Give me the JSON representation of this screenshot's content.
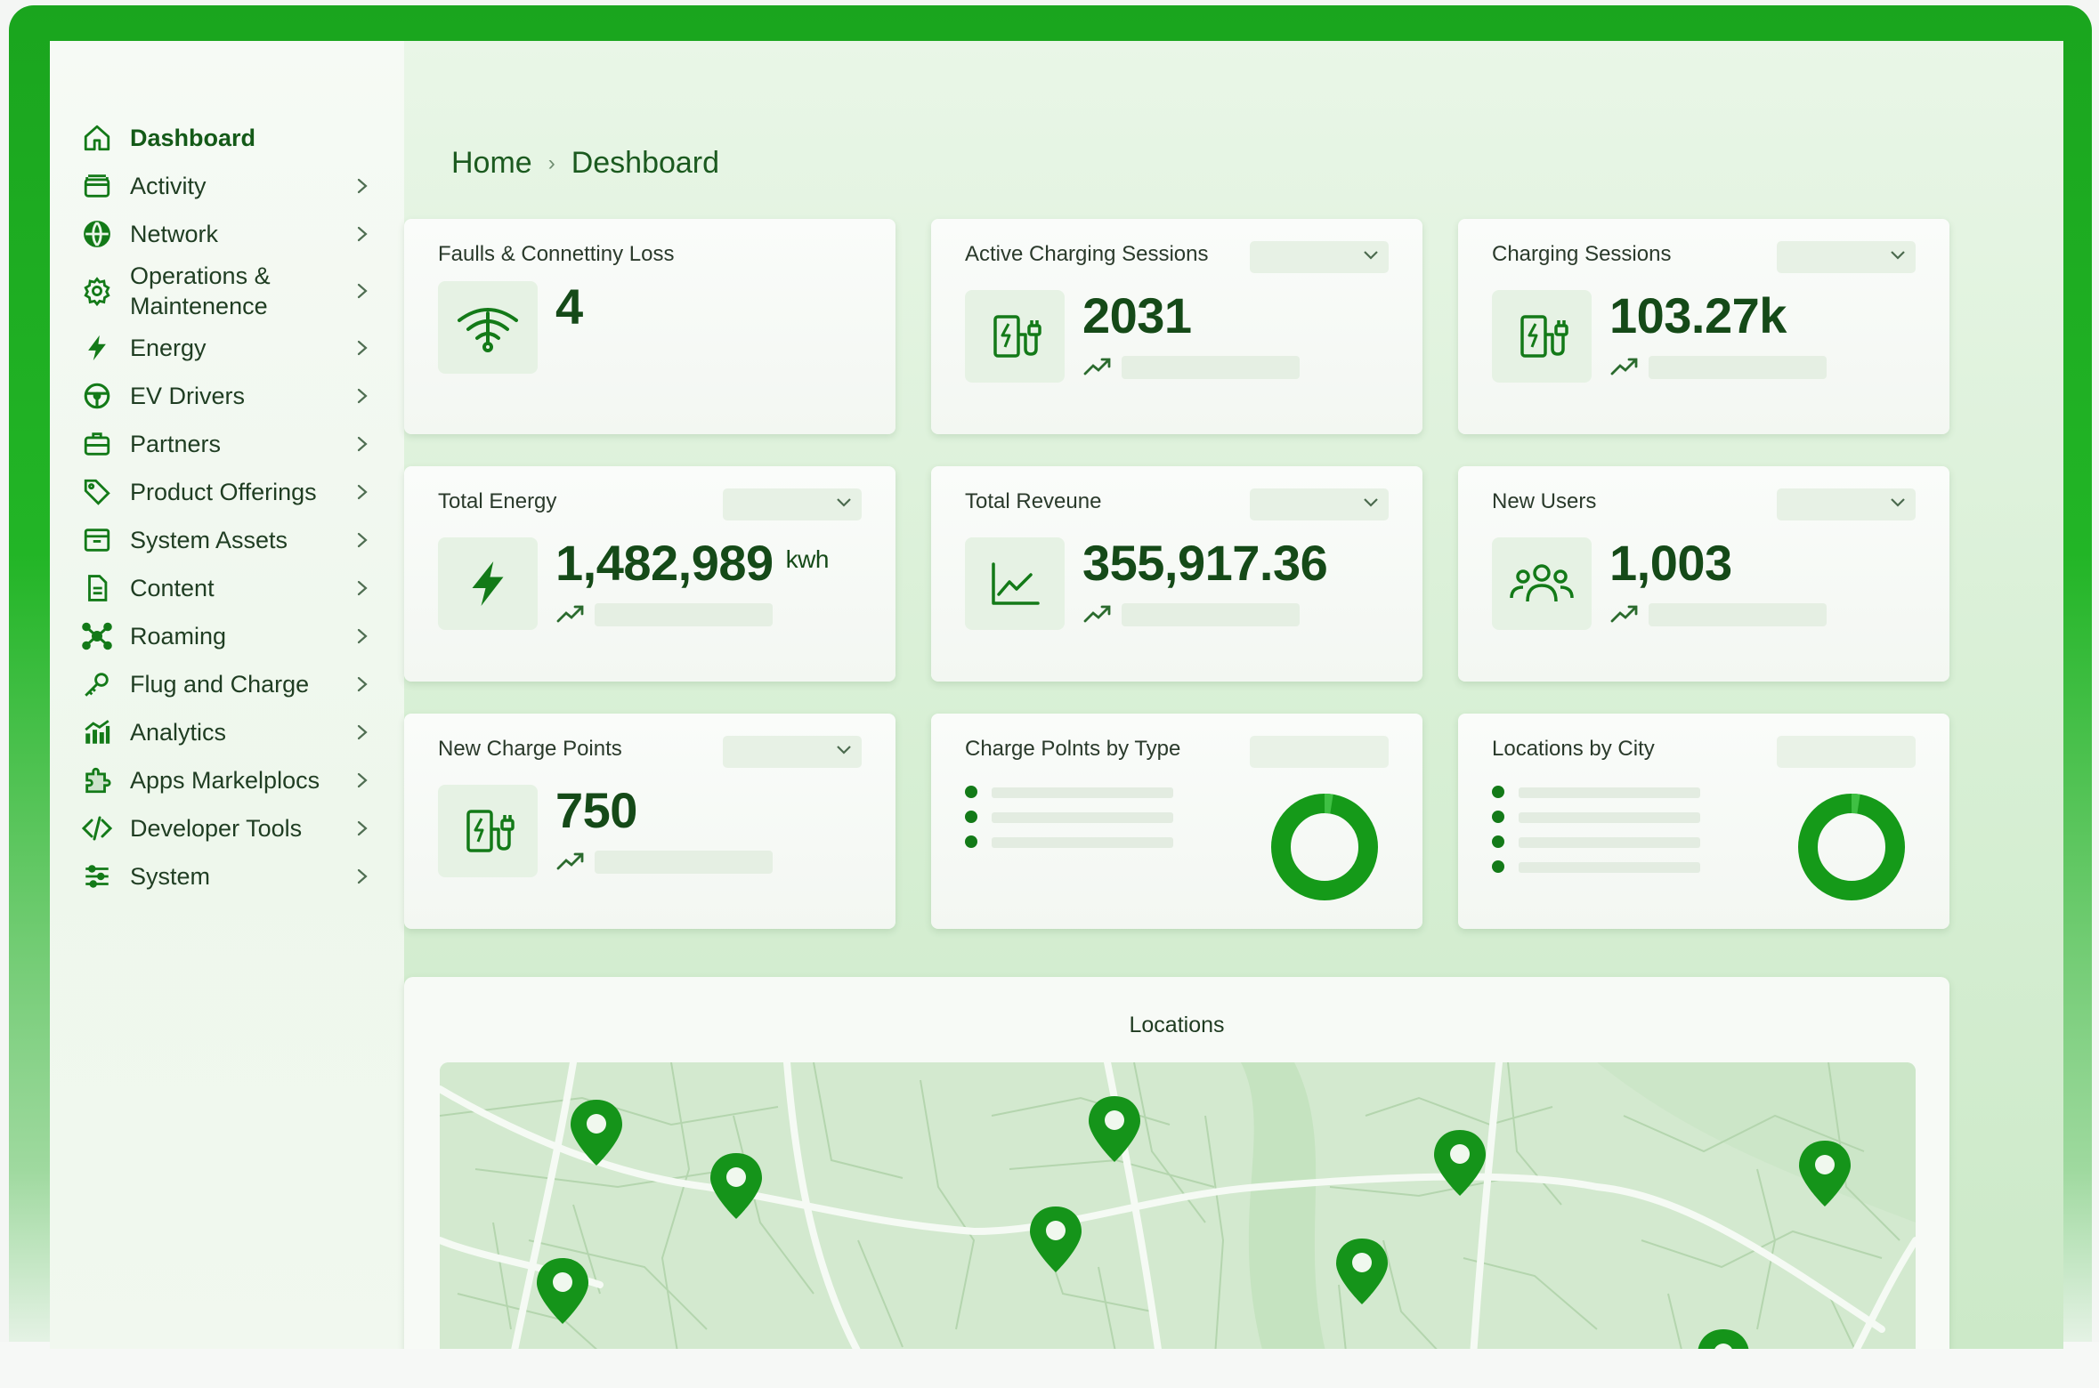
{
  "colors": {
    "accent": "#1aa51e",
    "dark_green": "#137a18",
    "text_green": "#154a18",
    "map_bg": "#d4ead0"
  },
  "sidebar": {
    "items": [
      {
        "label": "Dashboard",
        "icon": "home-icon",
        "active": true
      },
      {
        "label": "Activity",
        "icon": "box-icon"
      },
      {
        "label": "Network",
        "icon": "globe-icon"
      },
      {
        "label": "Operations & Maintenence",
        "icon": "gear-icon"
      },
      {
        "label": "Energy",
        "icon": "bolt-icon"
      },
      {
        "label": "EV Drivers",
        "icon": "steering-wheel-icon"
      },
      {
        "label": "Partners",
        "icon": "briefcase-icon"
      },
      {
        "label": "Product Offerings",
        "icon": "tag-icon"
      },
      {
        "label": "System Assets",
        "icon": "archive-icon"
      },
      {
        "label": "Content",
        "icon": "document-icon"
      },
      {
        "label": "Roaming",
        "icon": "network-hub-icon"
      },
      {
        "label": "Flug and Charge",
        "icon": "key-icon"
      },
      {
        "label": "Analytics",
        "icon": "bar-chart-icon"
      },
      {
        "label": "Apps Markelplocs",
        "icon": "puzzle-icon"
      },
      {
        "label": "Developer Tools",
        "icon": "code-icon"
      },
      {
        "label": "System",
        "icon": "sliders-icon"
      }
    ]
  },
  "breadcrumb": {
    "home": "Home",
    "separator": "›",
    "current": "Deshboard"
  },
  "cards": [
    {
      "title": "Faulls & Connettiny Loss",
      "value": "4",
      "icon": "wifi-signal-icon"
    },
    {
      "title": "Active Charging Sessions",
      "value": "2031",
      "icon": "ev-charger-icon"
    },
    {
      "title": "Charging Sessions",
      "value": "103.27k",
      "icon": "ev-charger-icon"
    },
    {
      "title": "Total Energy",
      "value": "1,482,989",
      "unit": "kwh",
      "icon": "bolt-icon"
    },
    {
      "title": "Total Reveune",
      "value": "355,917.36",
      "icon": "line-chart-icon"
    },
    {
      "title": "New Users",
      "value": "1,003",
      "icon": "users-icon"
    },
    {
      "title": "New Charge Points",
      "value": "750",
      "icon": "ev-charger-icon"
    },
    {
      "title": "Charge Polnts by Type",
      "icon": "donut-chart-icon"
    },
    {
      "title": "Locations by City",
      "icon": "donut-chart-icon"
    }
  ],
  "locations": {
    "title": "Locations",
    "marker_count": 10
  }
}
